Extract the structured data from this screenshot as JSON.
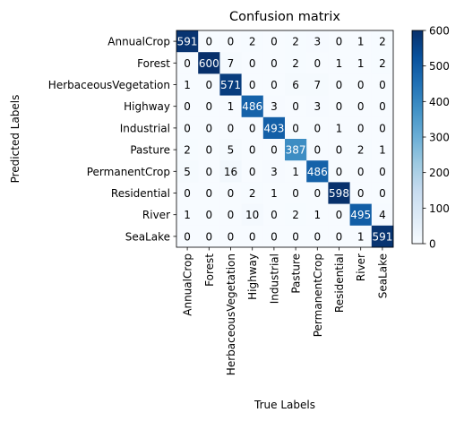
{
  "chart_data": {
    "type": "heatmap",
    "title": "Confusion matrix",
    "xlabel": "True Labels",
    "ylabel": "Predicted Labels",
    "row_labels": [
      "AnnualCrop",
      "Forest",
      "HerbaceousVegetation",
      "Highway",
      "Industrial",
      "Pasture",
      "PermanentCrop",
      "Residential",
      "River",
      "SeaLake"
    ],
    "col_labels": [
      "AnnualCrop",
      "Forest",
      "HerbaceousVegetation",
      "Highway",
      "Industrial",
      "Pasture",
      "PermanentCrop",
      "Residential",
      "River",
      "SeaLake"
    ],
    "matrix": [
      [
        591,
        0,
        0,
        2,
        0,
        2,
        3,
        0,
        1,
        2
      ],
      [
        0,
        600,
        7,
        0,
        0,
        2,
        0,
        1,
        1,
        2
      ],
      [
        1,
        0,
        571,
        0,
        0,
        6,
        7,
        0,
        0,
        0
      ],
      [
        0,
        0,
        1,
        486,
        3,
        0,
        3,
        0,
        0,
        0
      ],
      [
        0,
        0,
        0,
        0,
        493,
        0,
        0,
        1,
        0,
        0
      ],
      [
        2,
        0,
        5,
        0,
        0,
        387,
        0,
        0,
        2,
        1
      ],
      [
        5,
        0,
        16,
        0,
        3,
        1,
        486,
        0,
        0,
        0
      ],
      [
        0,
        0,
        0,
        2,
        1,
        0,
        0,
        598,
        0,
        0
      ],
      [
        1,
        0,
        0,
        10,
        0,
        2,
        1,
        0,
        495,
        4
      ],
      [
        0,
        0,
        0,
        0,
        0,
        0,
        0,
        0,
        1,
        591
      ]
    ],
    "colormap": "Blues",
    "vmin": 0,
    "vmax": 600,
    "colorbar_ticks": [
      0,
      100,
      200,
      300,
      400,
      500,
      600
    ],
    "grid": false
  }
}
